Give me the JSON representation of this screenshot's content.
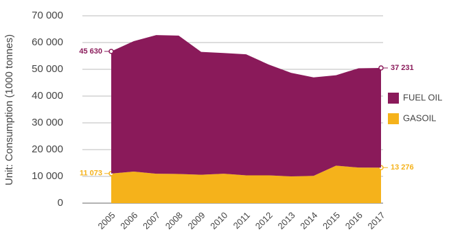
{
  "chart_data": {
    "type": "stacked-area",
    "y_label": "Unit: Consumption (1000 tonnes)",
    "categories": [
      "2005",
      "2006",
      "2007",
      "2008",
      "2009",
      "2010",
      "2011",
      "2012",
      "2013",
      "2014",
      "2015",
      "2016",
      "2017"
    ],
    "series": [
      {
        "name": "GASOIL",
        "color": "#f5b21b",
        "values": [
          11073,
          11800,
          11000,
          10900,
          10600,
          11000,
          10400,
          10400,
          10000,
          10200,
          14000,
          13300,
          13276
        ],
        "value_labels": [
          "11 073",
          null,
          null,
          null,
          null,
          null,
          null,
          null,
          null,
          null,
          null,
          null,
          "13 276"
        ]
      },
      {
        "name": "FUEL OIL",
        "color": "#8a1a5a",
        "values": [
          45630,
          48700,
          51800,
          51700,
          45900,
          45100,
          45200,
          41400,
          38700,
          36800,
          33800,
          37100,
          37231
        ],
        "value_labels": [
          "45 630",
          null,
          null,
          null,
          null,
          null,
          null,
          null,
          null,
          null,
          null,
          null,
          "37 231"
        ]
      }
    ],
    "ylim": [
      0,
      70000
    ],
    "yticks": [
      0,
      {
        "value": 10000,
        "label": "10 000"
      },
      {
        "value": 20000,
        "label": "20 000"
      },
      {
        "value": 30000,
        "label": "30 000"
      },
      {
        "value": 40000,
        "label": "40 000"
      },
      {
        "value": 50000,
        "label": "50 000"
      },
      {
        "value": 60000,
        "label": "60 000"
      },
      {
        "value": 70000,
        "label": "70 000"
      }
    ],
    "grid": true,
    "legend": "right"
  }
}
